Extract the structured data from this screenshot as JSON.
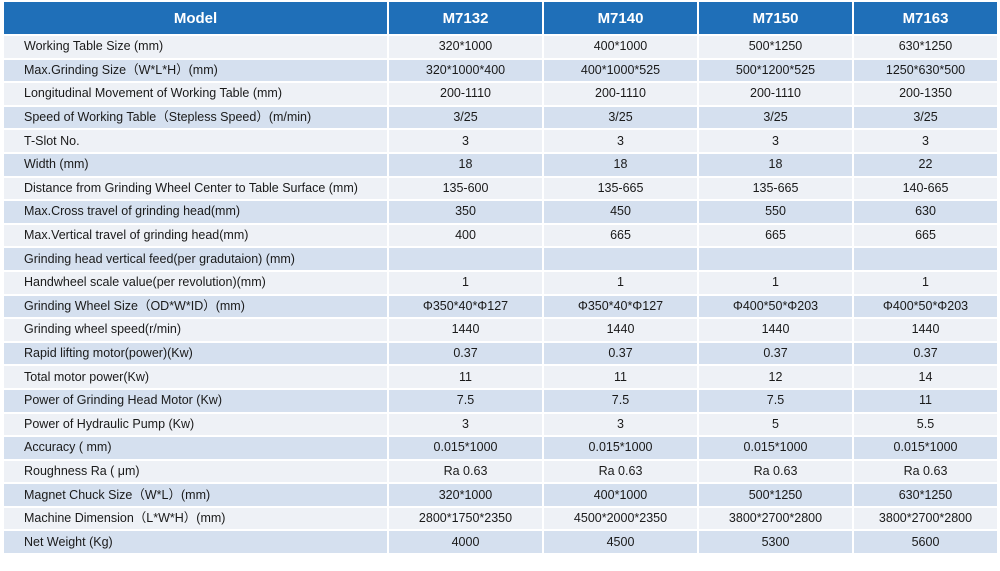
{
  "header": {
    "model": "Model",
    "cols": [
      "M7132",
      "M7140",
      "M7150",
      "M7163"
    ]
  },
  "rows": [
    {
      "label": "Working Table Size (mm)",
      "values": [
        "320*1000",
        "400*1000",
        "500*1250",
        "630*1250"
      ]
    },
    {
      "label": "Max.Grinding Size（W*L*H）(mm)",
      "values": [
        "320*1000*400",
        "400*1000*525",
        "500*1200*525",
        "1250*630*500"
      ]
    },
    {
      "label": "Longitudinal Movement of Working Table (mm)",
      "values": [
        "200-1110",
        "200-1110",
        "200-1110",
        "200-1350"
      ]
    },
    {
      "label": "Speed of  Working Table（Stepless Speed）(m/min)",
      "values": [
        "3/25",
        "3/25",
        "3/25",
        "3/25"
      ]
    },
    {
      "label": "T-Slot No.",
      "values": [
        "3",
        "3",
        "3",
        "3"
      ]
    },
    {
      "label": "Width (mm)",
      "values": [
        "18",
        "18",
        "18",
        "22"
      ]
    },
    {
      "label": "Distance from Grinding Wheel Center to Table Surface (mm)",
      "values": [
        "135-600",
        "135-665",
        "135-665",
        "140-665"
      ]
    },
    {
      "label": "Max.Cross travel of grinding head(mm)",
      "values": [
        "350",
        "450",
        "550",
        "630"
      ]
    },
    {
      "label": "Max.Vertical travel of grinding head(mm)",
      "values": [
        "400",
        "665",
        "665",
        "665"
      ]
    },
    {
      "label": "Grinding head vertical feed(per gradutaion) (mm)",
      "values": [
        "",
        "",
        "",
        ""
      ]
    },
    {
      "label": "Handwheel scale value(per revolution)(mm)",
      "values": [
        "1",
        "1",
        "1",
        "1"
      ]
    },
    {
      "label": "Grinding Wheel Size（OD*W*ID）(mm)",
      "values": [
        "Φ350*40*Φ127",
        "Φ350*40*Φ127",
        "Φ400*50*Φ203",
        "Φ400*50*Φ203"
      ]
    },
    {
      "label": "Grinding wheel speed(r/min)",
      "values": [
        "1440",
        "1440",
        "1440",
        "1440"
      ]
    },
    {
      "label": "Rapid lifting motor(power)(Kw)",
      "values": [
        "0.37",
        "0.37",
        "0.37",
        "0.37"
      ]
    },
    {
      "label": "Total motor power(Kw)",
      "values": [
        "11",
        "11",
        "12",
        "14"
      ]
    },
    {
      "label": "Power of Grinding Head Motor (Kw)",
      "values": [
        "7.5",
        "7.5",
        "7.5",
        "11"
      ]
    },
    {
      "label": "Power of Hydraulic Pump (Kw)",
      "values": [
        "3",
        "3",
        "5",
        "5.5"
      ]
    },
    {
      "label": "Accuracy ( mm)",
      "values": [
        "0.015*1000",
        "0.015*1000",
        "0.015*1000",
        "0.015*1000"
      ]
    },
    {
      "label": "Roughness Ra ( μm)",
      "values": [
        "Ra 0.63",
        "Ra 0.63",
        "Ra 0.63",
        "Ra 0.63"
      ]
    },
    {
      "label": "Magnet Chuck Size（W*L）(mm)",
      "values": [
        "320*1000",
        "400*1000",
        "500*1250",
        "630*1250"
      ]
    },
    {
      "label": "Machine Dimension（L*W*H）(mm)",
      "values": [
        "2800*1750*2350",
        "4500*2000*2350",
        "3800*2700*2800",
        "3800*2700*2800"
      ]
    },
    {
      "label": "Net Weight (Kg)",
      "values": [
        "4000",
        "4500",
        "5300",
        "5600"
      ]
    }
  ]
}
